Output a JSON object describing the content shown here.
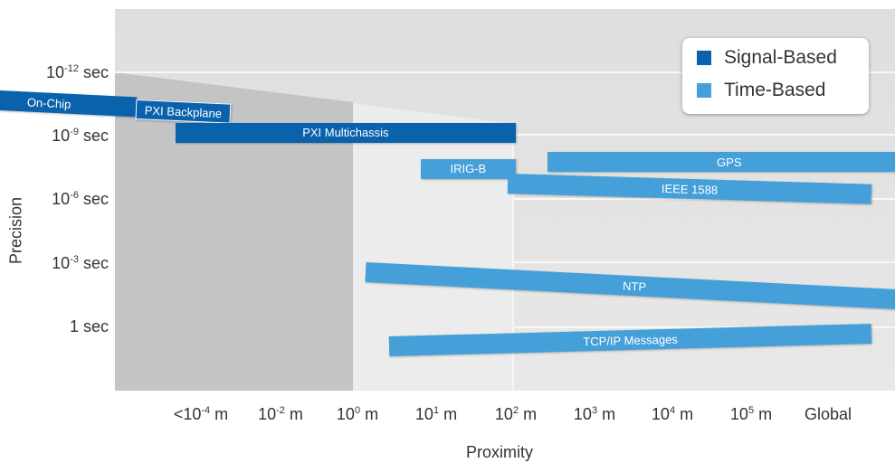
{
  "chart_data": {
    "type": "bar",
    "title": "",
    "ylabel": "Precision",
    "xlabel": "Proximity",
    "y_ticks": [
      {
        "base": "10",
        "exp": "-12",
        "unit": " sec"
      },
      {
        "base": "10",
        "exp": "-9",
        "unit": " sec"
      },
      {
        "base": "10",
        "exp": "-6",
        "unit": " sec"
      },
      {
        "base": "10",
        "exp": "-3",
        "unit": " sec"
      },
      {
        "base": "1",
        "exp": "",
        "unit": " sec"
      }
    ],
    "x_ticks": [
      {
        "base": "<10",
        "exp": "-4",
        "unit": " m"
      },
      {
        "base": "10",
        "exp": "-2",
        "unit": " m"
      },
      {
        "base": "10",
        "exp": "0",
        "unit": " m"
      },
      {
        "base": "10",
        "exp": "1",
        "unit": " m"
      },
      {
        "base": "10",
        "exp": "2",
        "unit": " m"
      },
      {
        "base": "10",
        "exp": "3",
        "unit": " m"
      },
      {
        "base": "10",
        "exp": "4",
        "unit": " m"
      },
      {
        "base": "10",
        "exp": "5",
        "unit": " m"
      },
      {
        "base": "Global",
        "exp": "",
        "unit": ""
      }
    ],
    "y_scale": "log10 seconds",
    "legend": {
      "placement": "top-right",
      "entries": [
        {
          "label": "Signal-Based",
          "color": "#0a62ad"
        },
        {
          "label": "Time-Based",
          "color": "#45a0d9"
        }
      ]
    },
    "series": [
      {
        "label": "On-Chip",
        "group": "Signal-Based",
        "x_start": -5,
        "x_end": -2.8,
        "precision_log_start": -10.8,
        "precision_log_end": -10.4
      },
      {
        "label": "PXI Backplane",
        "group": "Signal-Based",
        "x_start": -2.8,
        "x_end": -1.6,
        "precision_log_start": -10.3,
        "precision_log_end": -10.1
      },
      {
        "label": "PXI Multichassis",
        "group": "Signal-Based",
        "x_start": -2.3,
        "x_end": 2,
        "precision_log_start": -9.2,
        "precision_log_end": -9.2
      },
      {
        "label": "IRIG-B",
        "group": "Time-Based",
        "x_start": 0.8,
        "x_end": 2,
        "precision_log_start": -7.5,
        "precision_log_end": -7.5
      },
      {
        "label": "GPS",
        "group": "Time-Based",
        "x_start": 2.4,
        "x_end": 7,
        "precision_log_start": -7.8,
        "precision_log_end": -7.8
      },
      {
        "label": "IEEE 1588",
        "group": "Time-Based",
        "x_start": 1.9,
        "x_end": 6.5,
        "precision_log_start": -6.8,
        "precision_log_end": -6.3
      },
      {
        "label": "NTP",
        "group": "Time-Based",
        "x_start": 0.1,
        "x_end": 6.9,
        "precision_log_start": -2.6,
        "precision_log_end": -1.3
      },
      {
        "label": "TCP/IP Messages",
        "group": "Time-Based",
        "x_start": 0.4,
        "x_end": 6.5,
        "precision_log_start": 0.9,
        "precision_log_end": 0.3
      }
    ],
    "colors": {
      "signal": "#0a62ad",
      "time": "#45a0d9"
    }
  }
}
